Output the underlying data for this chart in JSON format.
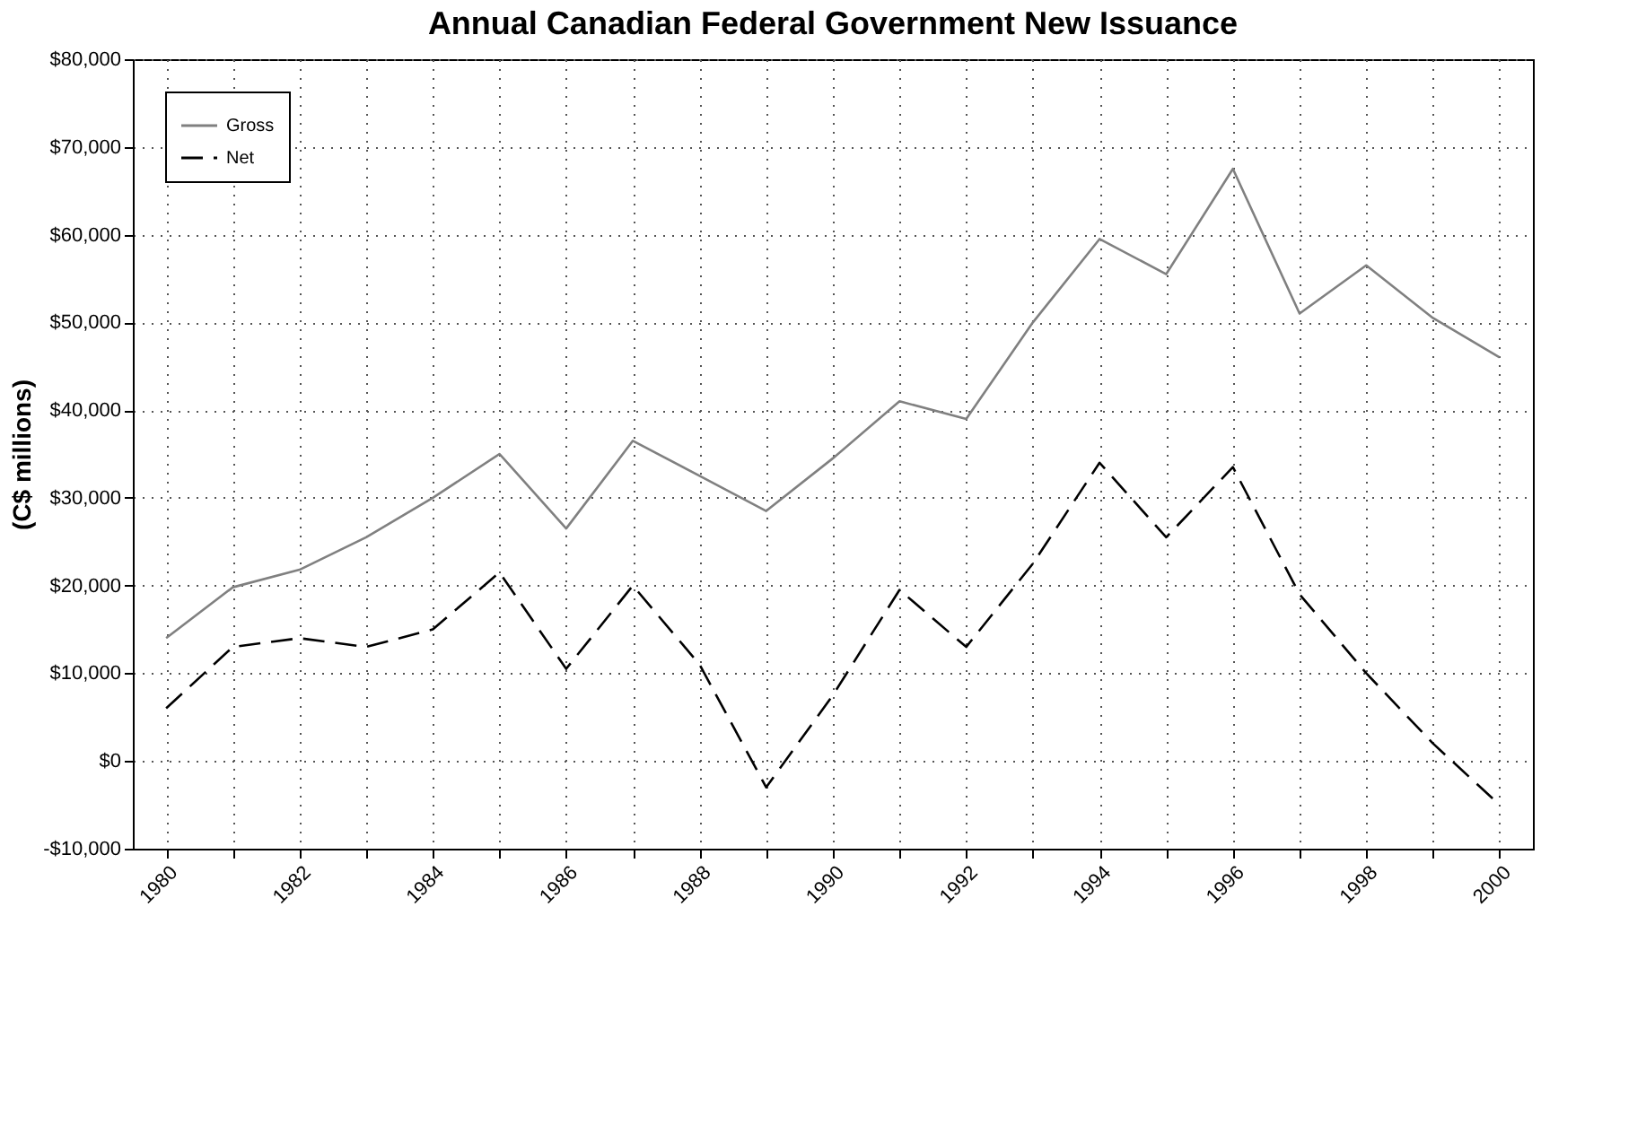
{
  "chart_data": {
    "type": "line",
    "title": "Annual Canadian Federal Government New Issuance",
    "ylabel": "(C$ millions)",
    "categories": [
      "1980",
      null,
      "1982",
      null,
      "1984",
      null,
      "1986",
      null,
      "1988",
      null,
      "1990",
      null,
      "1992",
      null,
      "1994",
      null,
      "1996",
      null,
      "1998",
      null,
      "2000"
    ],
    "series": [
      {
        "name": "Gross",
        "color": "#808080",
        "line_style": "solid",
        "values": [
          14000,
          19800,
          21800,
          25500,
          30000,
          35000,
          26500,
          36500,
          32500,
          28500,
          34500,
          41000,
          39000,
          50000,
          59500,
          55500,
          67500,
          51000,
          56500,
          50500,
          46000
        ]
      },
      {
        "name": "Net",
        "color": "#000000",
        "line_style": "dashed",
        "values": [
          6000,
          13000,
          14000,
          13000,
          15000,
          21500,
          10500,
          20000,
          11000,
          -3000,
          7500,
          19500,
          13000,
          22500,
          34000,
          25500,
          33500,
          19000,
          10000,
          2000,
          -5000
        ]
      }
    ],
    "ylim": [
      -10000,
      80000
    ],
    "yticks": [
      {
        "value": -10000,
        "label": "-$10,000"
      },
      {
        "value": 0,
        "label": "$0"
      },
      {
        "value": 10000,
        "label": "$10,000"
      },
      {
        "value": 20000,
        "label": "$20,000"
      },
      {
        "value": 30000,
        "label": "$30,000"
      },
      {
        "value": 40000,
        "label": "$40,000"
      },
      {
        "value": 50000,
        "label": "$50,000"
      },
      {
        "value": 60000,
        "label": "$60,000"
      },
      {
        "value": 70000,
        "label": "$70,000"
      },
      {
        "value": 80000,
        "label": "$80,000"
      }
    ],
    "grid": true,
    "legend": "top left",
    "marker": "none"
  }
}
